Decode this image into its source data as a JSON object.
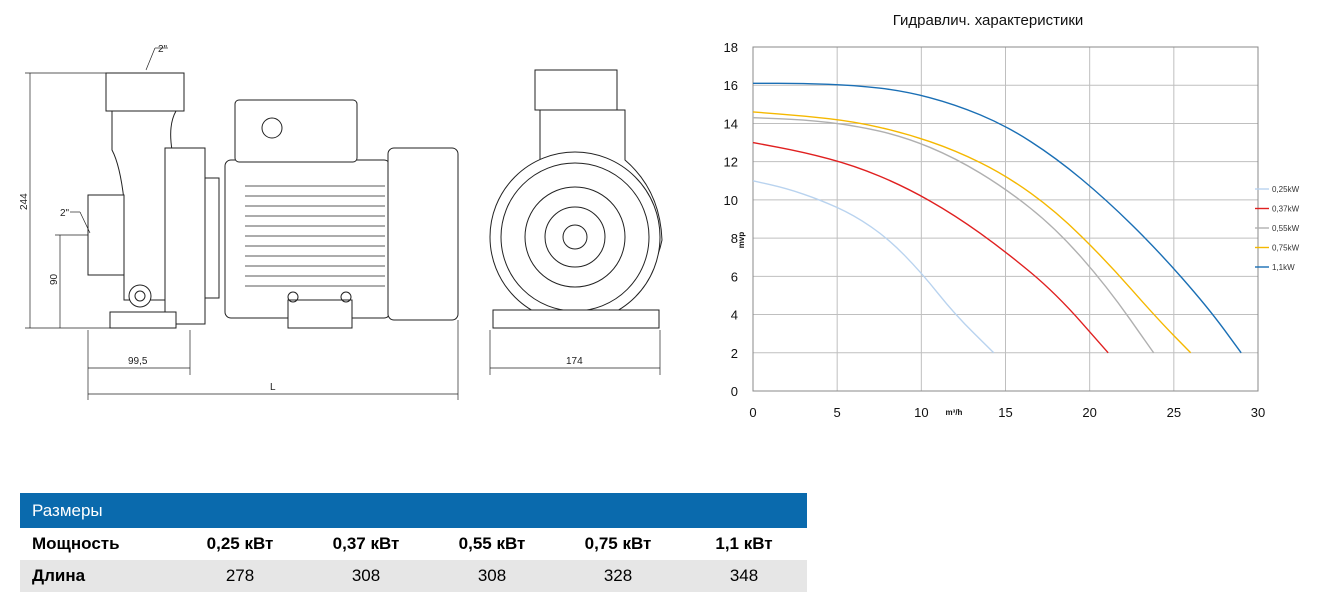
{
  "drawing": {
    "dim_inlet": "2\"",
    "dim_outlet": "2\"",
    "dim_height": "244",
    "dim_axis": "90",
    "dim_suction": "99,5",
    "dim_length": "L",
    "dim_width": "174"
  },
  "chart_data": {
    "type": "line",
    "title": "Гидравлич. характеристики",
    "xlabel": "m³/h",
    "ylabel": "mvp",
    "xlim": [
      0,
      30
    ],
    "ylim": [
      0,
      18
    ],
    "x_ticks": [
      0,
      5,
      10,
      15,
      20,
      25,
      30
    ],
    "y_ticks": [
      0,
      2,
      4,
      6,
      8,
      10,
      12,
      14,
      16,
      18
    ],
    "grid": true,
    "legend_position": "right",
    "series": [
      {
        "name": "0,25kW",
        "color": "#b9d3ef",
        "x": [
          0,
          2,
          4,
          6,
          8,
          10,
          12,
          14.3
        ],
        "y": [
          11,
          10.6,
          10.0,
          9.2,
          8.0,
          6.2,
          4.0,
          2.0
        ]
      },
      {
        "name": "0,37kW",
        "color": "#e02020",
        "x": [
          0,
          3,
          6,
          9,
          12,
          15,
          18,
          21.1
        ],
        "y": [
          13,
          12.5,
          11.8,
          10.7,
          9.2,
          7.3,
          5.1,
          2.0
        ]
      },
      {
        "name": "0,55kW",
        "color": "#b0b0b0",
        "x": [
          0,
          3,
          6,
          9,
          12,
          15,
          18,
          21,
          23.8
        ],
        "y": [
          14.3,
          14.2,
          13.9,
          13.3,
          12.2,
          10.6,
          8.5,
          5.5,
          2.0
        ]
      },
      {
        "name": "0,75kW",
        "color": "#f5b800",
        "x": [
          0,
          3,
          6,
          9,
          12,
          15,
          18,
          21,
          24,
          26
        ],
        "y": [
          14.6,
          14.4,
          14.1,
          13.5,
          12.6,
          11.3,
          9.4,
          6.8,
          3.8,
          2.0
        ]
      },
      {
        "name": "1,1kW",
        "color": "#1a6fb5",
        "x": [
          0,
          3,
          6,
          9,
          12,
          15,
          18,
          21,
          24,
          27,
          29
        ],
        "y": [
          16.1,
          16.1,
          16.0,
          15.7,
          15.0,
          13.9,
          12.2,
          10.0,
          7.4,
          4.4,
          2.0
        ]
      }
    ]
  },
  "table": {
    "title": "Размеры",
    "row1_label": "Мощность",
    "row1_values": [
      "0,25 кВт",
      "0,37 кВт",
      "0,55 кВт",
      "0,75 кВт",
      "1,1 кВт"
    ],
    "row2_label": "Длина",
    "row2_values": [
      "278",
      "308",
      "308",
      "328",
      "348"
    ]
  }
}
